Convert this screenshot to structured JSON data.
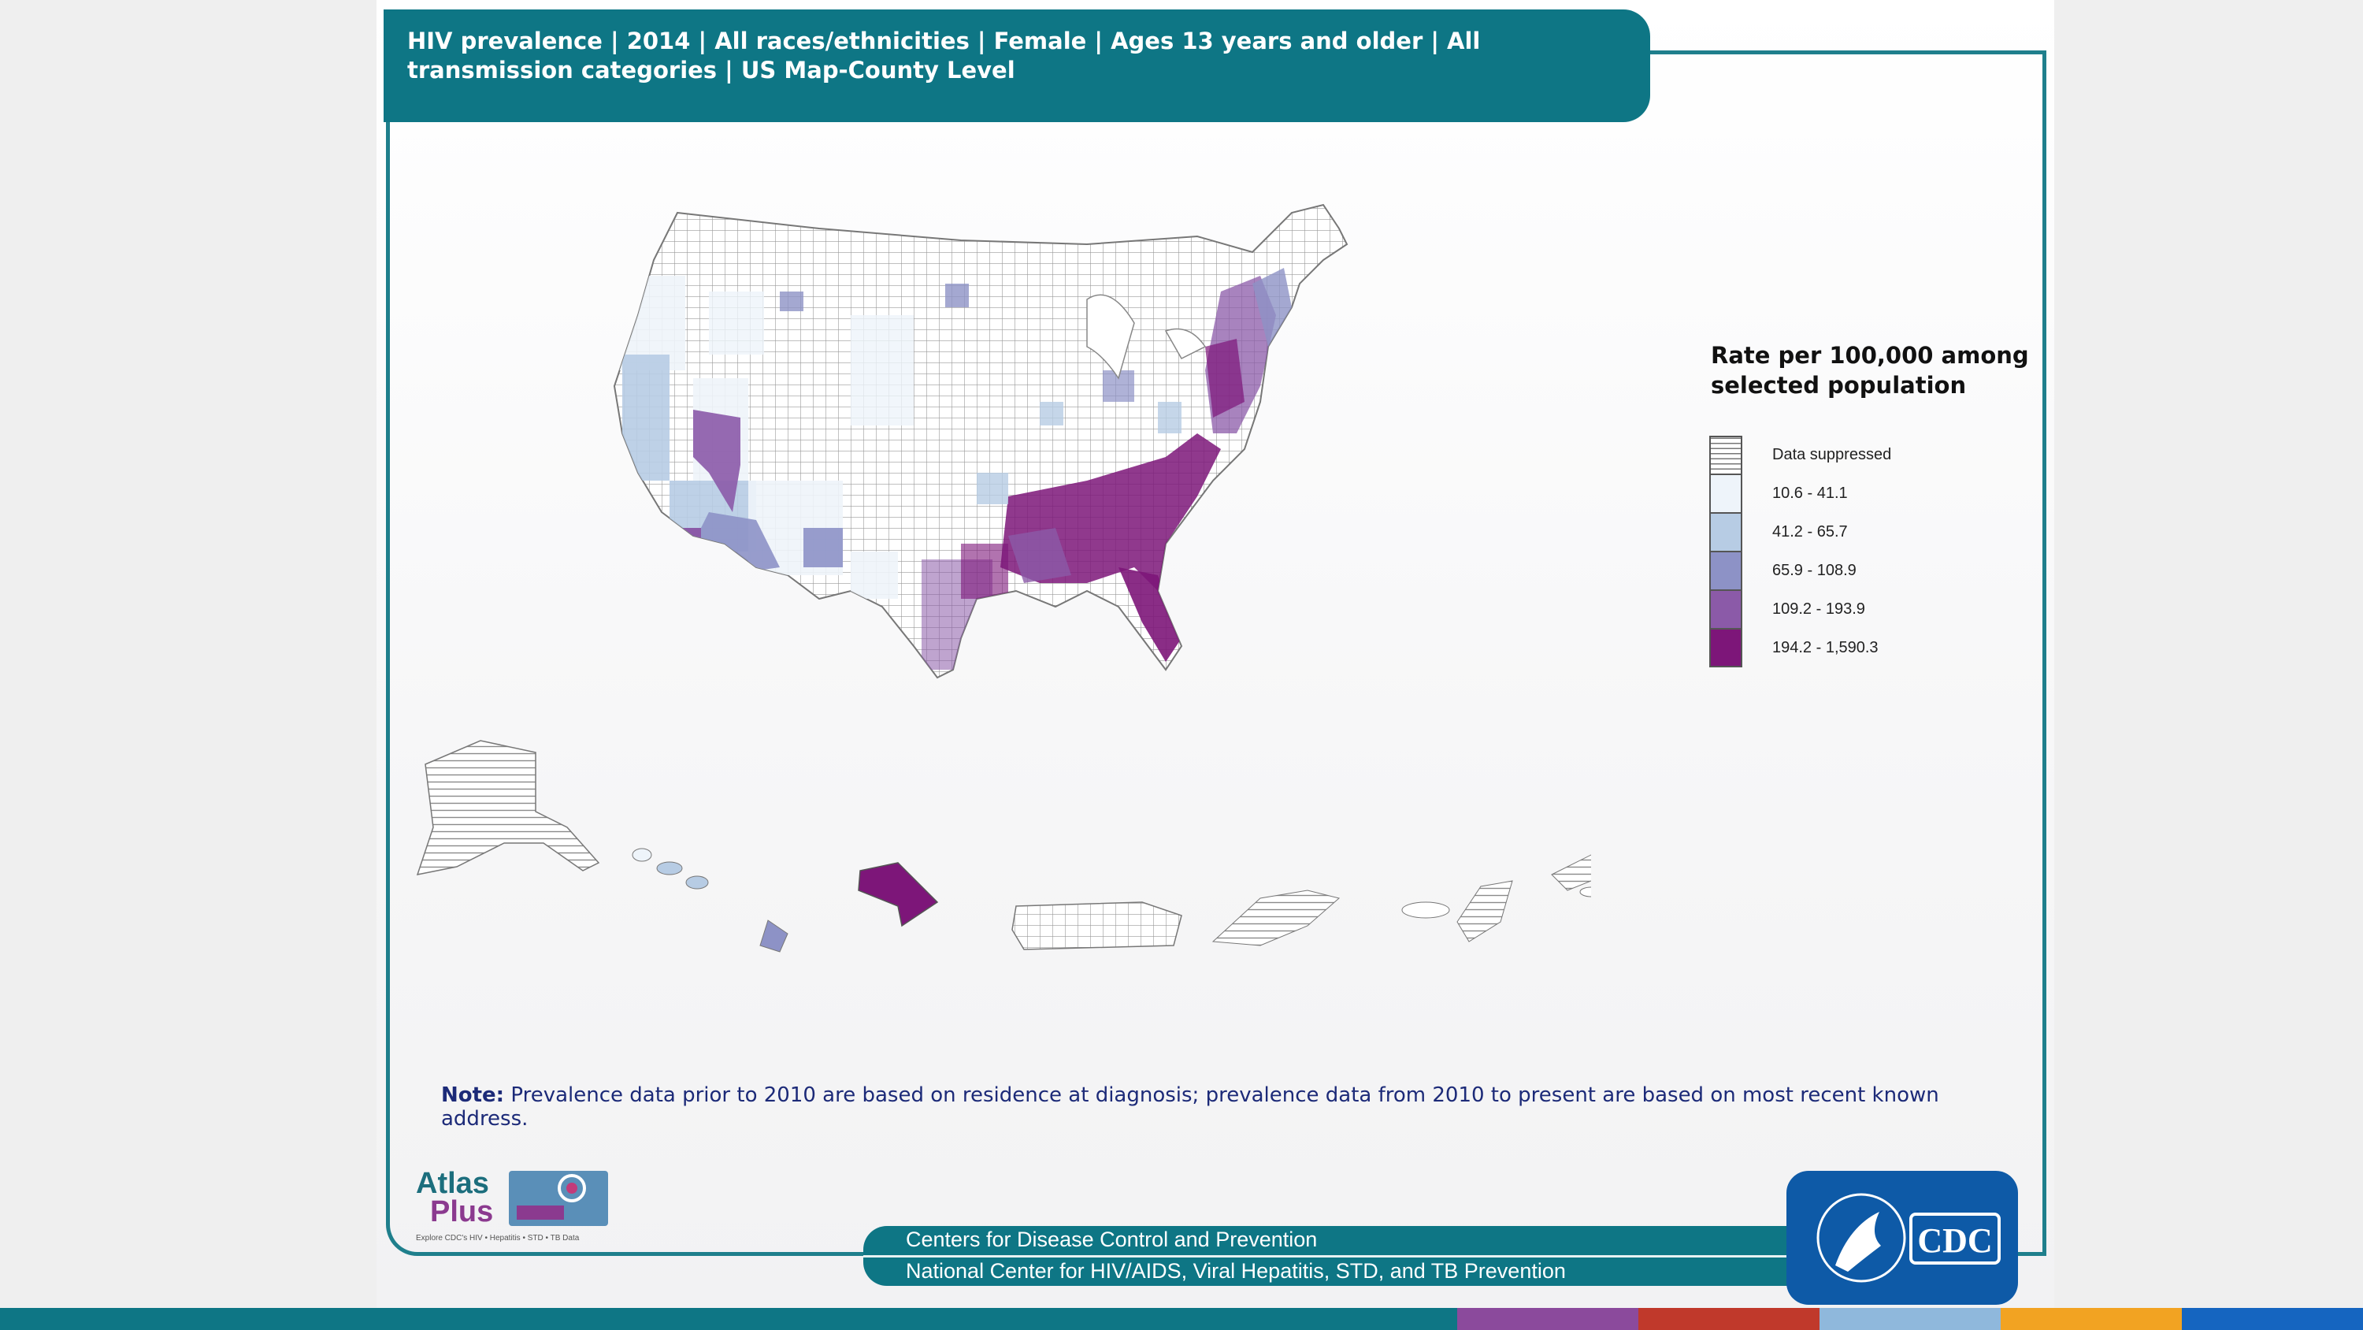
{
  "header": {
    "title": "HIV prevalence | 2014 | All races/ethnicities | Female | Ages 13 years and older | All transmission categories | US Map-County Level"
  },
  "legend": {
    "title": "Rate per 100,000 among selected population",
    "items": [
      {
        "label": "Data suppressed",
        "color": "suppressed"
      },
      {
        "label": "10.6 - 41.1",
        "color": "#eef4fa"
      },
      {
        "label": "41.2 - 65.7",
        "color": "#b7cce4"
      },
      {
        "label": "65.9 - 108.9",
        "color": "#8d92c6"
      },
      {
        "label": "109.2 - 193.9",
        "color": "#8b5aa8"
      },
      {
        "label": "194.2 - 1,590.3",
        "color": "#7d1679"
      }
    ]
  },
  "note": {
    "label": "Note:",
    "text": "Prevalence data prior to 2010 are based on residence at diagnosis; prevalence data from 2010 to present are based  on most recent known address."
  },
  "footer": {
    "line1": "Centers for Disease Control and Prevention",
    "line2": "National Center for HIV/AIDS, Viral Hepatitis, STD, and TB Prevention"
  },
  "atlas_logo": {
    "text1": "Atlas",
    "text2": "Plus",
    "tagline": "Explore CDC's HIV • Hepatitis • STD • TB Data"
  },
  "cdc_logo": {
    "text": "CDC"
  },
  "colors": {
    "teal": "#0e7685",
    "stripes": [
      "#0e7685",
      "#0e7685",
      "#8b4a9c",
      "#c0392b",
      "#8fb8dc",
      "#f2a322",
      "#1565c0"
    ]
  }
}
